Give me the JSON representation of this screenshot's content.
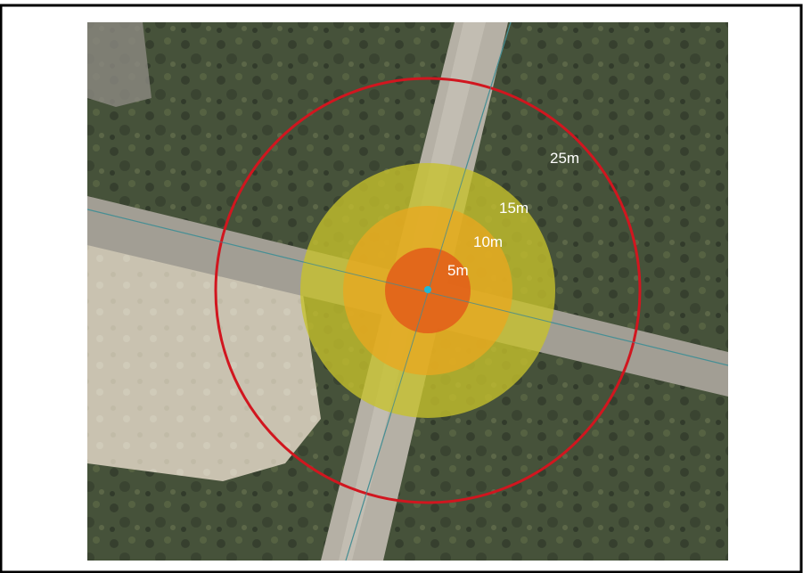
{
  "map": {
    "center_marker_color": "#21b7d6",
    "rings": [
      {
        "label": "25m",
        "fill": "none",
        "stroke": "#d1161f"
      },
      {
        "label": "15m",
        "fill": "#c6c22c",
        "stroke": "none"
      },
      {
        "label": "10m",
        "fill": "#e8a820",
        "stroke": "none"
      },
      {
        "label": "5m",
        "fill": "#e2621a",
        "stroke": "none"
      }
    ],
    "colors": {
      "grass_dark": "#3a4431",
      "grass_mid": "#54603f",
      "sand": "#c9c2b0",
      "road": "#9f9b91",
      "guide_line": "#4a9aa2"
    }
  }
}
